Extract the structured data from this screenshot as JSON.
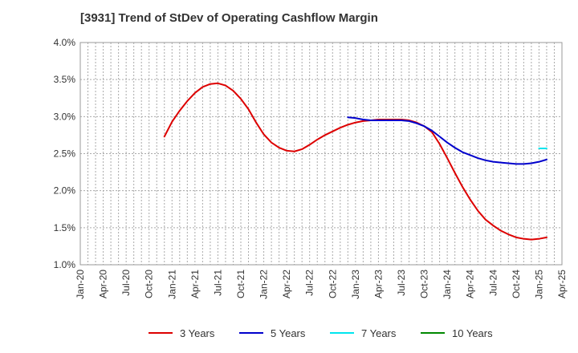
{
  "chart_data": {
    "type": "line",
    "title": "[3931]  Trend of StDev of Operating Cashflow Margin",
    "xlabel": "",
    "ylabel": "",
    "ylim": [
      1.0,
      4.0
    ],
    "y_ticks": [
      "1.0%",
      "1.5%",
      "2.0%",
      "2.5%",
      "3.0%",
      "3.5%",
      "4.0%"
    ],
    "xlim": [
      "2020-01",
      "2025-04"
    ],
    "x_ticks": [
      "Jan-20",
      "Apr-20",
      "Jul-20",
      "Oct-20",
      "Jan-21",
      "Apr-21",
      "Jul-21",
      "Oct-21",
      "Jan-22",
      "Apr-22",
      "Jul-22",
      "Oct-22",
      "Jan-23",
      "Apr-23",
      "Jul-23",
      "Oct-23",
      "Jan-24",
      "Apr-24",
      "Jul-24",
      "Oct-24",
      "Jan-25",
      "Apr-25"
    ],
    "grid": true,
    "legend_position": "bottom",
    "series": [
      {
        "name": "3 Years",
        "color": "#dd0000",
        "points": [
          [
            "2020-12",
            2.73
          ],
          [
            "2021-01",
            2.93
          ],
          [
            "2021-02",
            3.08
          ],
          [
            "2021-03",
            3.21
          ],
          [
            "2021-04",
            3.32
          ],
          [
            "2021-05",
            3.4
          ],
          [
            "2021-06",
            3.44
          ],
          [
            "2021-07",
            3.45
          ],
          [
            "2021-08",
            3.42
          ],
          [
            "2021-09",
            3.35
          ],
          [
            "2021-10",
            3.24
          ],
          [
            "2021-11",
            3.1
          ],
          [
            "2021-12",
            2.92
          ],
          [
            "2022-01",
            2.76
          ],
          [
            "2022-02",
            2.65
          ],
          [
            "2022-03",
            2.58
          ],
          [
            "2022-04",
            2.54
          ],
          [
            "2022-05",
            2.53
          ],
          [
            "2022-06",
            2.56
          ],
          [
            "2022-07",
            2.62
          ],
          [
            "2022-08",
            2.69
          ],
          [
            "2022-09",
            2.75
          ],
          [
            "2022-10",
            2.8
          ],
          [
            "2022-11",
            2.85
          ],
          [
            "2022-12",
            2.89
          ],
          [
            "2023-01",
            2.92
          ],
          [
            "2023-02",
            2.94
          ],
          [
            "2023-03",
            2.95
          ],
          [
            "2023-04",
            2.96
          ],
          [
            "2023-05",
            2.96
          ],
          [
            "2023-06",
            2.96
          ],
          [
            "2023-07",
            2.96
          ],
          [
            "2023-08",
            2.95
          ],
          [
            "2023-09",
            2.92
          ],
          [
            "2023-10",
            2.87
          ],
          [
            "2023-11",
            2.79
          ],
          [
            "2023-12",
            2.63
          ],
          [
            "2024-01",
            2.44
          ],
          [
            "2024-02",
            2.24
          ],
          [
            "2024-03",
            2.05
          ],
          [
            "2024-04",
            1.88
          ],
          [
            "2024-05",
            1.73
          ],
          [
            "2024-06",
            1.61
          ],
          [
            "2024-07",
            1.53
          ],
          [
            "2024-08",
            1.46
          ],
          [
            "2024-09",
            1.41
          ],
          [
            "2024-10",
            1.37
          ],
          [
            "2024-11",
            1.35
          ],
          [
            "2024-12",
            1.34
          ],
          [
            "2025-01",
            1.35
          ],
          [
            "2025-02",
            1.37
          ]
        ]
      },
      {
        "name": "5 Years",
        "color": "#0000cc",
        "points": [
          [
            "2022-12",
            2.99
          ],
          [
            "2023-01",
            2.98
          ],
          [
            "2023-02",
            2.96
          ],
          [
            "2023-03",
            2.95
          ],
          [
            "2023-04",
            2.95
          ],
          [
            "2023-05",
            2.95
          ],
          [
            "2023-06",
            2.95
          ],
          [
            "2023-07",
            2.95
          ],
          [
            "2023-08",
            2.94
          ],
          [
            "2023-09",
            2.91
          ],
          [
            "2023-10",
            2.87
          ],
          [
            "2023-11",
            2.81
          ],
          [
            "2023-12",
            2.73
          ],
          [
            "2024-01",
            2.65
          ],
          [
            "2024-02",
            2.58
          ],
          [
            "2024-03",
            2.52
          ],
          [
            "2024-04",
            2.48
          ],
          [
            "2024-05",
            2.44
          ],
          [
            "2024-06",
            2.41
          ],
          [
            "2024-07",
            2.39
          ],
          [
            "2024-08",
            2.38
          ],
          [
            "2024-09",
            2.37
          ],
          [
            "2024-10",
            2.36
          ],
          [
            "2024-11",
            2.36
          ],
          [
            "2024-12",
            2.37
          ],
          [
            "2025-01",
            2.39
          ],
          [
            "2025-02",
            2.42
          ]
        ]
      },
      {
        "name": "7 Years",
        "color": "#00e5ee",
        "points": [
          [
            "2025-01",
            2.57
          ],
          [
            "2025-02",
            2.57
          ]
        ]
      },
      {
        "name": "10 Years",
        "color": "#008800",
        "points": []
      }
    ]
  }
}
